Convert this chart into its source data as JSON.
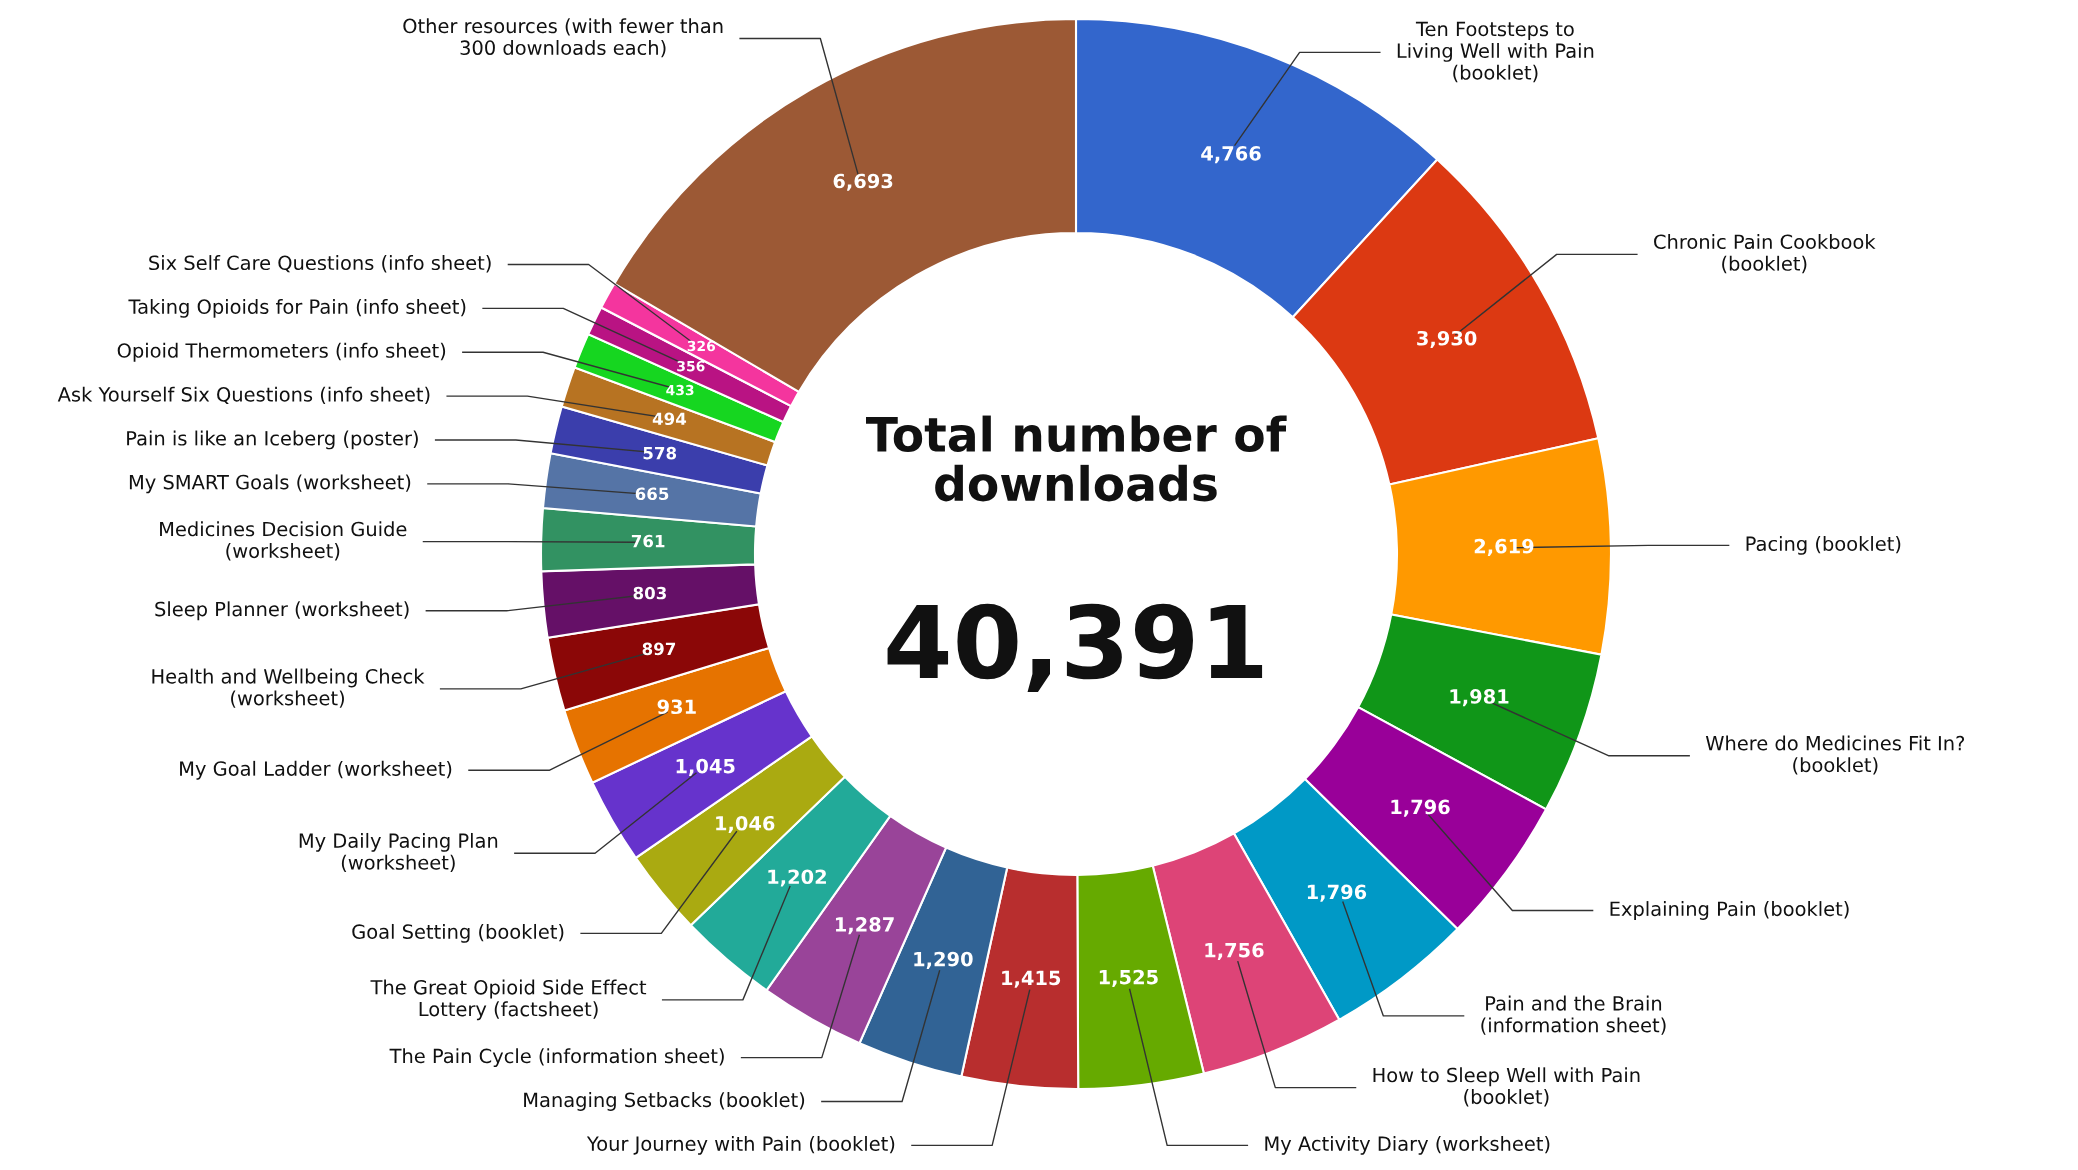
{
  "chart_data": {
    "type": "donut",
    "title": "Total number of\ndownloads",
    "annotations": [
      "40,391"
    ],
    "value_labels": [
      "4,766",
      "3,930",
      "2,619",
      "1,981",
      "1,796",
      "1,796",
      "1,756",
      "1,525",
      "1,415",
      "1,290",
      "1,287",
      "1,202",
      "1,046",
      "1,045",
      "931",
      "897",
      "803",
      "761",
      "665",
      "578",
      "494",
      "433",
      "356",
      "326",
      "6,693"
    ],
    "legend": false,
    "categories": [
      "Ten Footsteps to\nLiving Well with Pain\n(booklet)",
      "Chronic Pain Cookbook\n(booklet)",
      "Pacing (booklet)",
      "Where do Medicines Fit In?\n(booklet)",
      "Explaining Pain (booklet)",
      "Pain and the Brain\n(information sheet)",
      "How to Sleep Well with Pain\n(booklet)",
      "My Activity Diary (worksheet)",
      "Your Journey with Pain (booklet)",
      "Managing Setbacks (booklet)",
      "The Pain Cycle (information sheet)",
      "The Great Opioid Side Effect\nLottery (factsheet)",
      "Goal Setting (booklet)",
      "My Daily Pacing Plan\n(worksheet)",
      "My Goal Ladder (worksheet)",
      "Health and Wellbeing Check\n(worksheet)",
      "Sleep Planner (worksheet)",
      "Medicines Decision Guide\n(worksheet)",
      "My SMART Goals (worksheet)",
      "Pain is like an Iceberg (poster)",
      "Ask Yourself Six Questions (info sheet)",
      "Opioid Thermometers (info sheet)",
      "Taking Opioids for Pain (info sheet)",
      "Six Self Care Questions (info sheet)",
      "Other resources (with fewer than\n300 downloads each)"
    ],
    "values": [
      4766,
      3930,
      2619,
      1981,
      1796,
      1796,
      1756,
      1525,
      1415,
      1290,
      1287,
      1202,
      1046,
      1045,
      931,
      897,
      803,
      761,
      665,
      578,
      494,
      433,
      356,
      326,
      6693
    ],
    "colors": [
      "#3366cc",
      "#dc3912",
      "#ff9900",
      "#109618",
      "#990099",
      "#0099c6",
      "#dd4477",
      "#66aa00",
      "#b82e2e",
      "#316395",
      "#994499",
      "#22aa99",
      "#aaaa11",
      "#6633cc",
      "#e67300",
      "#8b0707",
      "#651067",
      "#329262",
      "#5574a6",
      "#3b3eac",
      "#b77322",
      "#16d620",
      "#b91383",
      "#f4359e",
      "#9c5935"
    ]
  }
}
